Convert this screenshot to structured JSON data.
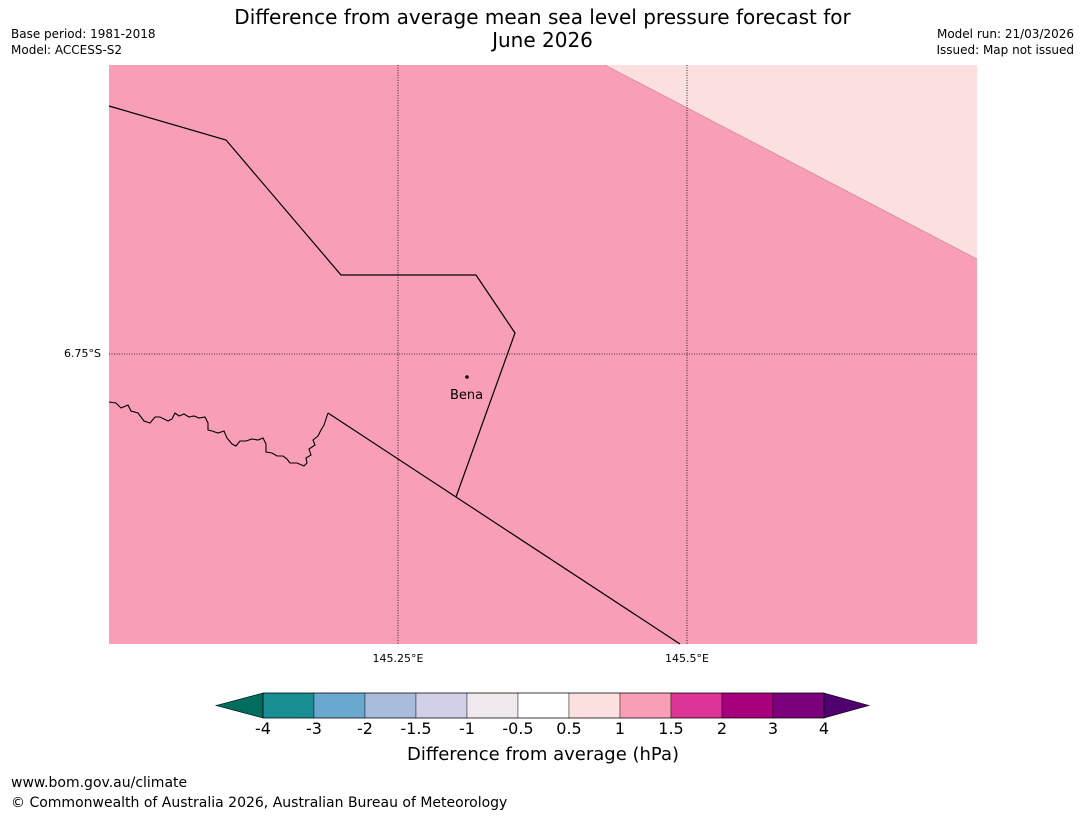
{
  "header": {
    "title": "Difference from average mean sea level pressure forecast for\nJune 2026",
    "base_period": "Base period: 1981-2018",
    "model": "Model: ACCESS-S2",
    "model_run": "Model run: 21/03/2026",
    "issued": "Issued: Map not issued"
  },
  "map": {
    "lat_label": "6.75°S",
    "lon_labels": [
      "145.25°E",
      "145.5°E"
    ],
    "place": "Bena",
    "fill_colors": {
      "main": "#f89fb7",
      "corner": "#fcdfdf"
    },
    "main_category": "1 to 1.5 hPa",
    "corner_category": "0.5 to 1 hPa"
  },
  "colorbar": {
    "title": "Difference from average (hPa)",
    "ticks": [
      "-4",
      "-3",
      "-2",
      "-1.5",
      "-1",
      "-0.5",
      "0.5",
      "1",
      "1.5",
      "2",
      "3",
      "4"
    ],
    "colors": [
      "#1a8f93",
      "#6aa8d0",
      "#a8bcdc",
      "#d0d0e8",
      "#f0e8ef",
      "#ffffff",
      "#fcdfdf",
      "#f89fb7",
      "#dc3596",
      "#a8007c",
      "#7c007c"
    ],
    "under_color": "#006d5f",
    "over_color": "#4f006e"
  },
  "footer": {
    "url": "www.bom.gov.au/climate",
    "copyright": "© Commonwealth of Australia 2026, Australian Bureau of Meteorology"
  }
}
